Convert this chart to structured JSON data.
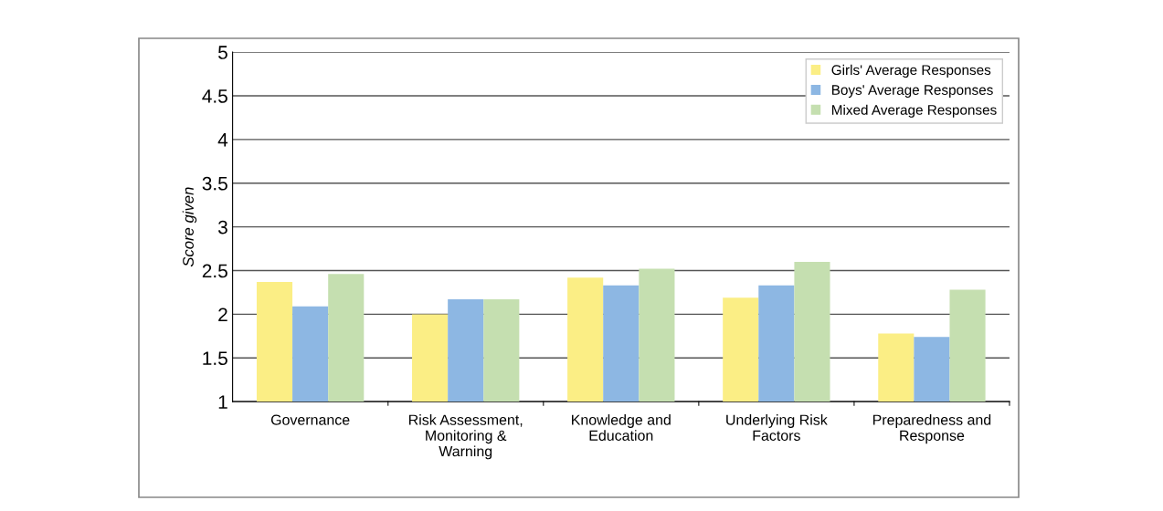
{
  "chart_data": {
    "type": "bar",
    "ylabel": "Score given",
    "categories": [
      "Governance",
      "Risk Assessment,\nMonitoring &\nWarning",
      "Knowledge and\nEducation",
      "Underlying Risk\nFactors",
      "Preparedness and\nResponse"
    ],
    "series": [
      {
        "name": "Girls' Average Responses",
        "color": "#fbee85",
        "values": [
          2.37,
          2.0,
          2.42,
          2.19,
          1.78
        ]
      },
      {
        "name": "Boys' Average Responses",
        "color": "#8db7e3",
        "values": [
          2.09,
          2.17,
          2.33,
          2.33,
          1.74
        ]
      },
      {
        "name": "Mixed Average Responses",
        "color": "#c5dfb0",
        "values": [
          2.46,
          2.17,
          2.52,
          2.6,
          2.28
        ]
      }
    ],
    "ylim": [
      1,
      5
    ],
    "yticks": [
      1,
      1.5,
      2,
      2.5,
      3,
      3.5,
      4,
      4.5,
      5
    ],
    "grid": "y",
    "legend": "top right"
  }
}
